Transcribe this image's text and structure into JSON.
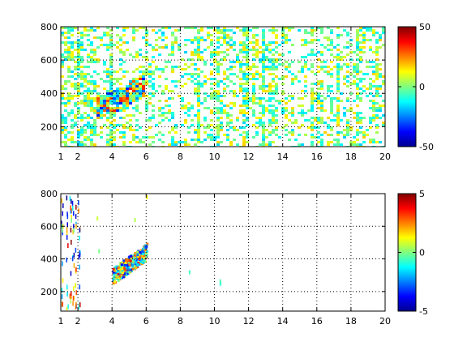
{
  "chart_data": [
    {
      "type": "heatmap",
      "title": "",
      "xlabel": "",
      "ylabel": "",
      "xlim": [
        1,
        20
      ],
      "ylim": [
        80,
        800
      ],
      "xticks": [
        1,
        2,
        4,
        6,
        8,
        10,
        12,
        14,
        16,
        18,
        20
      ],
      "yticks": [
        200,
        400,
        600,
        800
      ],
      "grid": true,
      "colormap": "jet",
      "colorbar": {
        "limits": [
          -50,
          50
        ],
        "ticks": [
          -50,
          0,
          50
        ]
      },
      "coverage": "dense",
      "feature": {
        "description_type": "high-density band",
        "x_range": [
          3,
          6
        ],
        "y_at_start": 300,
        "y_at_end": 450
      }
    },
    {
      "type": "heatmap",
      "title": "",
      "xlabel": "",
      "ylabel": "",
      "xlim": [
        1,
        20
      ],
      "ylim": [
        80,
        800
      ],
      "xticks": [
        1,
        2,
        4,
        6,
        8,
        10,
        12,
        14,
        16,
        18,
        20
      ],
      "yticks": [
        200,
        400,
        600,
        800
      ],
      "grid": true,
      "colormap": "jet",
      "colorbar": {
        "limits": [
          -5,
          5
        ],
        "ticks": [
          -5,
          0,
          5
        ]
      },
      "coverage": "sparse",
      "feature": {
        "description_type": "high-density band",
        "x_range": [
          4,
          6
        ],
        "y_at_start": 300,
        "y_at_end": 450
      }
    }
  ],
  "colors": {
    "jet": [
      "#00008f",
      "#0000ff",
      "#00ffff",
      "#ffff00",
      "#ff0000",
      "#800000"
    ]
  }
}
